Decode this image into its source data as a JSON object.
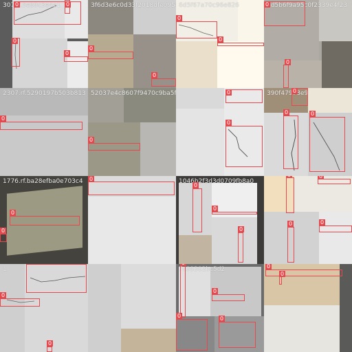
{
  "mosaic": {
    "label_color": "#e5484d",
    "box_label": "0",
    "tiles": [
      "3077f.5eb9c3e4e1",
      "3f6d3e6c0d33f2018dfe0958",
      "6d5f67a70c96e826",
      "dd5b6f9a95c0f2339e4f23",
      "2307.rf.5290197b503b813",
      "52037e4c8607f9470c9ba5f",
      "",
      "390f47978e9",
      "1776.rf.ba28efba0e703c4",
      "",
      "1046b2f3d3d0709fb8a0",
      "",
      "1",
      "",
      "7c09302bc5d2",
      ""
    ]
  }
}
